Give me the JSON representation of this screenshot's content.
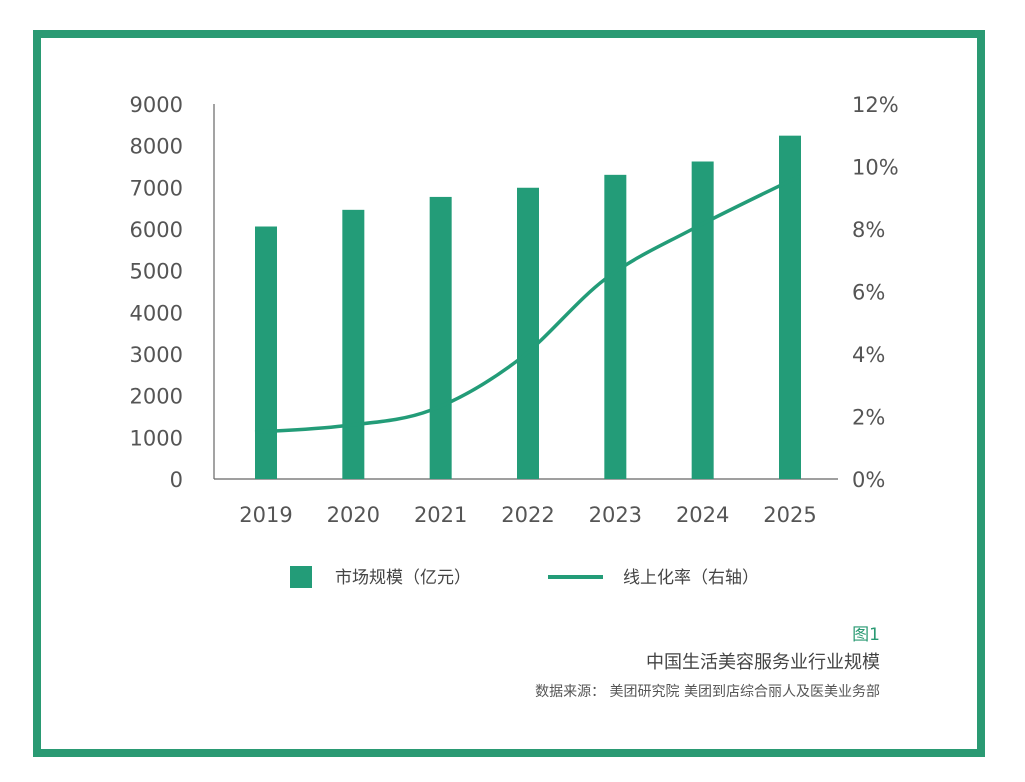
{
  "colors": {
    "accent": "#239c78",
    "frame": "#2a9a73",
    "text": "#555555"
  },
  "chart_data": {
    "type": "bar+line",
    "categories": [
      "2019",
      "2020",
      "2021",
      "2022",
      "2023",
      "2024",
      "2025"
    ],
    "series": [
      {
        "name": "市场规模（亿元）",
        "type": "bar",
        "axis": "left",
        "values": [
          6060,
          6460,
          6770,
          6990,
          7300,
          7620,
          8240
        ]
      },
      {
        "name": "线上化率（右轴）",
        "type": "line",
        "axis": "right",
        "values": [
          1.5,
          1.7,
          2.2,
          3.8,
          6.4,
          8.0,
          9.7
        ]
      }
    ],
    "left_axis": {
      "ylim": [
        0,
        9000
      ],
      "ticks": [
        "0",
        "1000",
        "2000",
        "3000",
        "4000",
        "5000",
        "6000",
        "7000",
        "8000",
        "9000"
      ]
    },
    "right_axis": {
      "ylim": [
        0,
        12
      ],
      "unit": "%",
      "ticks": [
        "0%",
        "2%",
        "4%",
        "6%",
        "8%",
        "10%",
        "12%"
      ]
    },
    "legend_placement": "bottom",
    "grid": false
  },
  "caption": {
    "figure_label": "图1",
    "title": "中国生活美容服务业行业规模",
    "source": "数据来源：  美团研究院 美团到店综合丽人及医美业务部"
  }
}
